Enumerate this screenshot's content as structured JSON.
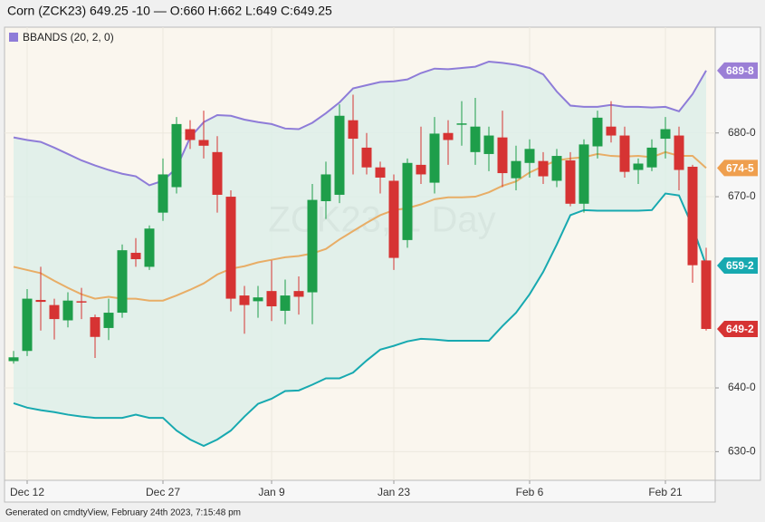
{
  "chart_data": {
    "type": "candlestick",
    "title": "Corn (ZCK23) 649.25 -10 — O:660 H:662 L:649 C:649.25",
    "watermark": "ZCK23, 1 Day",
    "footer": "Generated on cmdtyView, February 24th 2023, 7:15:48 pm",
    "categories": [
      null,
      "Dec 12",
      null,
      null,
      null,
      null,
      null,
      null,
      null,
      null,
      null,
      "Dec 27",
      null,
      null,
      null,
      null,
      null,
      null,
      null,
      "Jan 9",
      null,
      null,
      null,
      null,
      null,
      null,
      null,
      null,
      "Jan 23",
      null,
      null,
      null,
      null,
      null,
      null,
      null,
      null,
      null,
      "Feb 6",
      null,
      null,
      null,
      null,
      null,
      null,
      null,
      null,
      null,
      "Feb 21",
      null,
      null,
      null
    ],
    "open": [
      644.2,
      645.8,
      653.8,
      653.0,
      650.6,
      653.6,
      651.1,
      649.4,
      651.8,
      661.2,
      659.0,
      667.5,
      671.5,
      680.6,
      678.9,
      677.0,
      670.0,
      654.5,
      653.6,
      655.2,
      652.1,
      655.2,
      655.0,
      669.3,
      670.3,
      682.0,
      677.7,
      674.6,
      672.5,
      663.2,
      675.0,
      672.2,
      680.0,
      681.3,
      677.0,
      676.7,
      679.3,
      672.9,
      675.3,
      675.6,
      672.5,
      675.7,
      668.9,
      677.9,
      681.0,
      679.6,
      674.2,
      674.6,
      679.1,
      679.6,
      674.7,
      660
    ],
    "high": [
      645.8,
      655.5,
      659.0,
      654.0,
      655.0,
      655.7,
      651.5,
      654.0,
      662.5,
      663.5,
      665.5,
      676.0,
      682.5,
      682.0,
      683.5,
      679.5,
      671.0,
      656.0,
      656.0,
      660.0,
      657.0,
      657.5,
      672.0,
      675.5,
      684.5,
      686.0,
      680.0,
      675.5,
      673.5,
      676.0,
      681.0,
      682.5,
      682.0,
      685.0,
      685.5,
      681.0,
      683.5,
      678.0,
      679.0,
      677.0,
      677.5,
      677.0,
      679.0,
      683.5,
      685.0,
      681.0,
      676.0,
      679.0,
      682.5,
      681.0,
      675.0,
      662
    ],
    "low": [
      643.8,
      645.0,
      649.0,
      647.6,
      649.5,
      650.8,
      644.7,
      647.5,
      651.0,
      659.0,
      658.5,
      666.2,
      670.5,
      677.5,
      676.0,
      667.5,
      652.0,
      648.5,
      651.0,
      650.5,
      650.0,
      651.5,
      650.0,
      666.5,
      669.0,
      673.5,
      673.5,
      670.5,
      658.5,
      662.0,
      672.0,
      670.5,
      675.0,
      678.0,
      675.0,
      674.0,
      671.5,
      671.0,
      673.0,
      672.0,
      671.5,
      668.5,
      667.5,
      676.0,
      678.5,
      673.0,
      672.0,
      674.0,
      676.0,
      671.0,
      656.5,
      649
    ],
    "close": [
      644.8,
      654.0,
      653.5,
      650.8,
      653.7,
      653.4,
      648.0,
      651.8,
      661.6,
      660.2,
      665.0,
      673.5,
      681.4,
      678.9,
      678.0,
      670.3,
      654.0,
      653.0,
      654.2,
      652.8,
      654.5,
      654.3,
      669.5,
      673.5,
      682.7,
      679.1,
      674.6,
      673.0,
      660.4,
      675.3,
      673.5,
      679.9,
      678.9,
      681.5,
      681.0,
      679.6,
      673.7,
      675.6,
      677.5,
      673.2,
      676.4,
      668.9,
      678.2,
      682.4,
      679.6,
      673.9,
      675.2,
      677.7,
      680.6,
      674.2,
      659.25,
      649.25
    ],
    "up_color": "#1e9e4a",
    "down_color": "#d63333",
    "bands": {
      "label": "BBANDS (20, 2, 0)",
      "upper_color": "#8e7cd8",
      "middle_color": "#e8ad66",
      "lower_color": "#17a9b0",
      "fill_color": "#dcefe8",
      "upper": [
        679.3,
        678.9,
        678.6,
        677.7,
        676.7,
        675.7,
        674.9,
        674.2,
        673.6,
        673.2,
        671.8,
        672.5,
        674.5,
        679.3,
        681.7,
        682.8,
        682.7,
        682.1,
        681.7,
        681.4,
        680.7,
        680.6,
        681.6,
        683.1,
        684.8,
        687.0,
        687.5,
        688.0,
        688.1,
        688.4,
        689.4,
        690.1,
        690.0,
        690.2,
        690.4,
        691.2,
        691.0,
        690.7,
        690.2,
        689.2,
        686.5,
        684.3,
        684.1,
        684.1,
        684.4,
        684.1,
        684.1,
        684.0,
        684.1,
        683.4,
        686.1,
        689.8
      ],
      "middle": [
        659.0,
        658.5,
        658.0,
        656.8,
        655.7,
        654.7,
        654.0,
        654.3,
        654.0,
        654.0,
        653.7,
        653.7,
        654.5,
        655.4,
        656.4,
        657.8,
        658.7,
        659.1,
        659.7,
        660.1,
        660.5,
        660.7,
        661.1,
        661.8,
        663.3,
        664.6,
        665.9,
        667.1,
        667.9,
        668.2,
        668.8,
        669.6,
        669.9,
        669.9,
        670.0,
        670.7,
        671.7,
        672.4,
        673.8,
        674.8,
        675.7,
        676.0,
        676.2,
        676.7,
        676.4,
        676.3,
        676.4,
        676.2,
        677.0,
        676.4,
        676.4,
        674.5
      ],
      "lower": [
        637.6,
        636.9,
        636.5,
        636.2,
        635.8,
        635.5,
        635.3,
        635.3,
        635.3,
        635.8,
        635.3,
        635.3,
        633.3,
        631.9,
        630.9,
        631.9,
        633.3,
        635.5,
        637.5,
        638.3,
        639.5,
        639.6,
        640.5,
        641.5,
        641.5,
        642.4,
        644.3,
        646.0,
        646.6,
        647.3,
        647.7,
        647.6,
        647.4,
        647.4,
        647.4,
        647.4,
        649.7,
        651.8,
        654.7,
        658.2,
        662.5,
        667.1,
        667.9,
        667.8,
        667.8,
        667.8,
        667.8,
        667.9,
        670.5,
        670.2,
        665.3,
        659.2
      ]
    },
    "markers": [
      {
        "value": 689.8,
        "label": "689-8",
        "color": "#9b7fd6"
      },
      {
        "value": 674.5,
        "label": "674-5",
        "color": "#ef9f4e"
      },
      {
        "value": 659.2,
        "label": "659-2",
        "color": "#17a9b0"
      },
      {
        "value": 649.25,
        "label": "649-2",
        "color": "#d63333"
      }
    ],
    "ylim": [
      625.5,
      696.6
    ],
    "yticks": [
      {
        "value": 630,
        "label": "630-0"
      },
      {
        "value": 640,
        "label": "640-0"
      },
      {
        "value": 670,
        "label": "670-0"
      },
      {
        "value": 680,
        "label": "680-0"
      }
    ],
    "grid": true
  }
}
